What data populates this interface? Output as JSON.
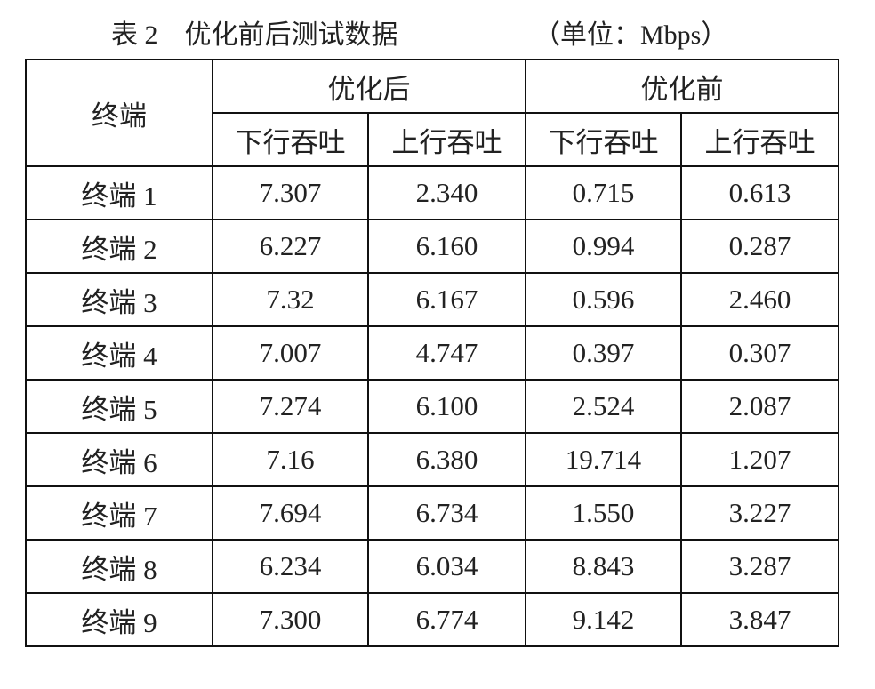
{
  "title": "表 2　优化前后测试数据",
  "unit": "（单位：Mbps）",
  "table": {
    "header": {
      "terminal": "终端",
      "groups": [
        "优化后",
        "优化前"
      ],
      "subheaders": [
        "下行吞吐",
        "上行吞吐",
        "下行吞吐",
        "上行吞吐"
      ]
    },
    "rows": [
      [
        "终端 1",
        "7.307",
        "2.340",
        "0.715",
        "0.613"
      ],
      [
        "终端 2",
        "6.227",
        "6.160",
        "0.994",
        "0.287"
      ],
      [
        "终端 3",
        "7.32",
        "6.167",
        "0.596",
        "2.460"
      ],
      [
        "终端 4",
        "7.007",
        "4.747",
        "0.397",
        "0.307"
      ],
      [
        "终端 5",
        "7.274",
        "6.100",
        "2.524",
        "2.087"
      ],
      [
        "终端 6",
        "7.16",
        "6.380",
        "19.714",
        "1.207"
      ],
      [
        "终端 7",
        "7.694",
        "6.734",
        "1.550",
        "3.227"
      ],
      [
        "终端 8",
        "6.234",
        "6.034",
        "8.843",
        "3.287"
      ],
      [
        "终端 9",
        "7.300",
        "6.774",
        "9.142",
        "3.847"
      ]
    ]
  }
}
